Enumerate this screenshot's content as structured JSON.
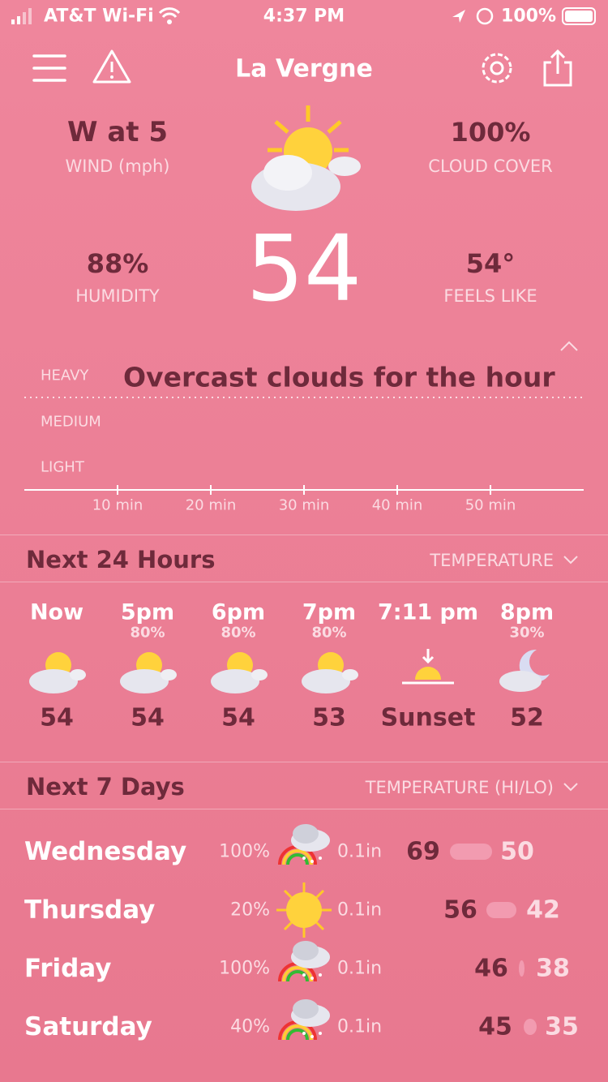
{
  "status_bar": {
    "carrier": "AT&T Wi-Fi",
    "time": "4:37 PM",
    "battery": "100%"
  },
  "header": {
    "title": "La Vergne"
  },
  "current": {
    "wind": {
      "value": "W at 5",
      "label": "WIND (mph)"
    },
    "cloud_cover": {
      "value": "100%",
      "label": "CLOUD COVER"
    },
    "humidity": {
      "value": "88%",
      "label": "HUMIDITY"
    },
    "feels_like": {
      "value": "54°",
      "label": "FEELS LIKE"
    },
    "temperature": "54"
  },
  "precipitation": {
    "summary": "Overcast clouds for the hour",
    "levels": [
      "HEAVY",
      "MEDIUM",
      "LIGHT"
    ],
    "ticks": [
      "10 min",
      "20 min",
      "30 min",
      "40 min",
      "50 min"
    ]
  },
  "hourly": {
    "title": "Next 24 Hours",
    "mode": "TEMPERATURE",
    "items": [
      {
        "time": "Now",
        "temp": "54"
      },
      {
        "time": "5pm",
        "chance": "80%",
        "temp": "54"
      },
      {
        "time": "6pm",
        "chance": "80%",
        "temp": "54"
      },
      {
        "time": "7pm",
        "chance": "80%",
        "temp": "53"
      },
      {
        "time": "7:11 pm",
        "event": "Sunset"
      },
      {
        "time": "8pm",
        "chance": "30%",
        "temp": "52"
      }
    ]
  },
  "daily": {
    "title": "Next 7 Days",
    "mode": "TEMPERATURE (HI/LO)",
    "days": [
      {
        "day": "Wednesday",
        "chance": "100%",
        "amount": "0.1in",
        "high": "69",
        "low": "50"
      },
      {
        "day": "Thursday",
        "chance": "20%",
        "amount": "0.1in",
        "high": "56",
        "low": "42"
      },
      {
        "day": "Friday",
        "chance": "100%",
        "amount": "0.1in",
        "high": "46",
        "low": "38"
      },
      {
        "day": "Saturday",
        "chance": "40%",
        "amount": "0.1in",
        "high": "45",
        "low": "35"
      }
    ]
  }
}
